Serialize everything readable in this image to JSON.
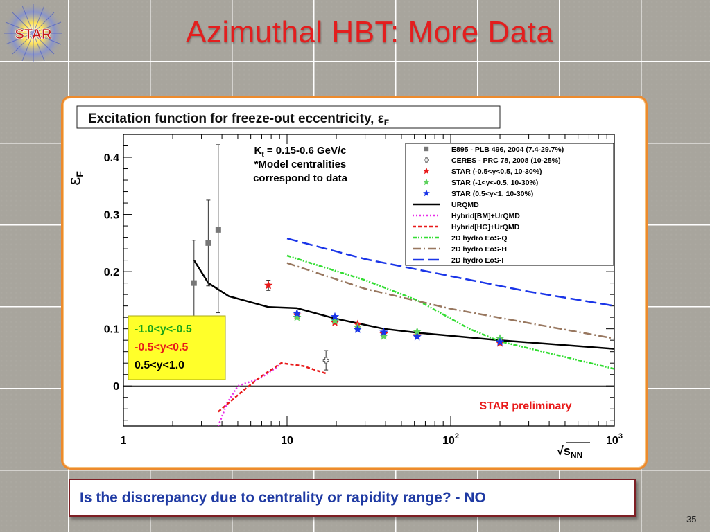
{
  "slide": {
    "title": "Azimuthal HBT: More Data",
    "logo_text": "STAR",
    "question": "Is the discrepancy due to centrality or rapidity range? - NO",
    "page_number": "35",
    "colors": {
      "title": "#e31e1e",
      "frame_border": "#ed8a2c",
      "question_text": "#1f3aa3",
      "question_border": "#7d1f24"
    }
  },
  "chart_data": {
    "type": "scatter",
    "title": "Excitation function for freeze-out eccentricity, ε",
    "title_subscript": "F",
    "ylabel": "ε",
    "ylabel_subscript": "F",
    "xlabel": "√s",
    "xlabel_subscript": "NN",
    "xscale": "log",
    "xlim": [
      1,
      1000
    ],
    "ylim": [
      -0.07,
      0.44
    ],
    "x_tick_labels": [
      {
        "value": 1,
        "label": "1"
      },
      {
        "value": 10,
        "label": "10"
      },
      {
        "value": 100,
        "label": "10",
        "sup": "2"
      },
      {
        "value": 1000,
        "label": "10",
        "sup": "3"
      }
    ],
    "y_tick_labels": [
      {
        "value": 0,
        "label": "0"
      },
      {
        "value": 0.1,
        "label": "0.1"
      },
      {
        "value": 0.2,
        "label": "0.2"
      },
      {
        "value": 0.3,
        "label": "0.3"
      },
      {
        "value": 0.4,
        "label": "0.4"
      }
    ],
    "annotation_lines": [
      {
        "text": "K",
        "sub": "t",
        "rest": " = 0.15-0.6 GeV/c"
      },
      {
        "text": "*Model centralities"
      },
      {
        "text": "correspond to data"
      }
    ],
    "preliminary_label": "STAR preliminary",
    "rapidity_legend": [
      {
        "text": "-1.0<y<-0.5",
        "color": "#18a318"
      },
      {
        "text": "-0.5<y<0.5",
        "color": "#e81a1a"
      },
      {
        "text": "0.5<y<1.0",
        "color": "#000000"
      }
    ],
    "legend": {
      "placement": "top-right",
      "entries": [
        {
          "label": "E895 - PLB 496, 2004 (7.4-29.7%)",
          "kind": "square",
          "color": "#777777"
        },
        {
          "label": "CERES - PRC 78, 2008 (10-25%)",
          "kind": "cross",
          "color": "#555555"
        },
        {
          "label": "STAR (-0.5<y<0.5, 10-30%)",
          "kind": "star",
          "color": "#e81a1a"
        },
        {
          "label": "STAR (-1<y<-0.5, 10-30%)",
          "kind": "star",
          "color": "#5fd35f"
        },
        {
          "label": "STAR (0.5<y<1, 10-30%)",
          "kind": "star",
          "color": "#1a35e8"
        },
        {
          "label": "URQMD",
          "kind": "line",
          "color": "#000000",
          "dash": "",
          "width": 2.5
        },
        {
          "label": "Hybrid[BM]+UrQMD",
          "kind": "line",
          "color": "#e82ae8",
          "dash": "2 3",
          "width": 2.5
        },
        {
          "label": "Hybrid[HG]+UrQMD",
          "kind": "line",
          "color": "#e81a1a",
          "dash": "5 3",
          "width": 2.5
        },
        {
          "label": "2D hydro EoS-Q",
          "kind": "line",
          "color": "#33dd33",
          "dash": "6 2 2 2 2 2",
          "width": 2.5
        },
        {
          "label": "2D hydro EoS-H",
          "kind": "line",
          "color": "#98775f",
          "dash": "12 4 2 4",
          "width": 2.5
        },
        {
          "label": "2D hydro EoS-I",
          "kind": "line",
          "color": "#1a35e8",
          "dash": "16 6",
          "width": 2.5
        }
      ]
    },
    "series": [
      {
        "name": "E895 - PLB 496, 2004 (7.4-29.7%)",
        "kind": "square",
        "color": "#777777",
        "points": [
          {
            "x": 2.7,
            "y": 0.18,
            "lo": 0.105,
            "hi": 0.255
          },
          {
            "x": 3.3,
            "y": 0.25,
            "lo": 0.175,
            "hi": 0.325
          },
          {
            "x": 3.8,
            "y": 0.273,
            "lo": 0.128,
            "hi": 0.422
          }
        ]
      },
      {
        "name": "CERES - PRC 78, 2008 (10-25%)",
        "kind": "cross",
        "color": "#555555",
        "points": [
          {
            "x": 17.3,
            "y": 0.045,
            "lo": 0.028,
            "hi": 0.062
          }
        ]
      },
      {
        "name": "STAR (-0.5<y<0.5, 10-30%)",
        "kind": "star",
        "color": "#e81a1a",
        "points": [
          {
            "x": 7.7,
            "y": 0.176,
            "lo": 0.167,
            "hi": 0.185
          },
          {
            "x": 11.5,
            "y": 0.124
          },
          {
            "x": 19.6,
            "y": 0.111
          },
          {
            "x": 27,
            "y": 0.108
          },
          {
            "x": 39,
            "y": 0.091
          },
          {
            "x": 62.4,
            "y": 0.088
          },
          {
            "x": 200,
            "y": 0.075
          }
        ]
      },
      {
        "name": "STAR (-1<y<-0.5, 10-30%)",
        "kind": "star",
        "color": "#5fd35f",
        "points": [
          {
            "x": 11.5,
            "y": 0.12
          },
          {
            "x": 19.6,
            "y": 0.114
          },
          {
            "x": 27,
            "y": 0.103
          },
          {
            "x": 39,
            "y": 0.087
          },
          {
            "x": 62.4,
            "y": 0.095
          },
          {
            "x": 200,
            "y": 0.083
          }
        ]
      },
      {
        "name": "STAR (0.5<y<1, 10-30%)",
        "kind": "star",
        "color": "#1a35e8",
        "points": [
          {
            "x": 11.5,
            "y": 0.127
          },
          {
            "x": 19.6,
            "y": 0.121
          },
          {
            "x": 27,
            "y": 0.099
          },
          {
            "x": 39,
            "y": 0.094
          },
          {
            "x": 62.4,
            "y": 0.086
          },
          {
            "x": 200,
            "y": 0.077
          }
        ]
      },
      {
        "name": "URQMD",
        "kind": "line",
        "color": "#000000",
        "dash": "",
        "width": 2.5,
        "points": [
          {
            "x": 2.7,
            "y": 0.22
          },
          {
            "x": 3.3,
            "y": 0.18
          },
          {
            "x": 4.4,
            "y": 0.157
          },
          {
            "x": 7.7,
            "y": 0.138
          },
          {
            "x": 11.5,
            "y": 0.136
          },
          {
            "x": 19.6,
            "y": 0.118
          },
          {
            "x": 39,
            "y": 0.1
          },
          {
            "x": 62.4,
            "y": 0.093
          },
          {
            "x": 200,
            "y": 0.08
          },
          {
            "x": 1000,
            "y": 0.065
          }
        ]
      },
      {
        "name": "Hybrid[BM]+UrQMD",
        "kind": "line",
        "color": "#e82ae8",
        "dash": "2 3",
        "width": 2.5,
        "points": [
          {
            "x": 3.8,
            "y": -0.07
          },
          {
            "x": 4.3,
            "y": -0.03
          },
          {
            "x": 5,
            "y": 0.0
          },
          {
            "x": 6.8,
            "y": 0.013
          },
          {
            "x": 9.2,
            "y": 0.038
          }
        ]
      },
      {
        "name": "Hybrid[HG]+UrQMD",
        "kind": "line",
        "color": "#e81a1a",
        "dash": "5 3",
        "width": 2.5,
        "points": [
          {
            "x": 3.8,
            "y": -0.045
          },
          {
            "x": 5.2,
            "y": -0.012
          },
          {
            "x": 6.8,
            "y": 0.015
          },
          {
            "x": 9.2,
            "y": 0.04
          },
          {
            "x": 12.5,
            "y": 0.035
          },
          {
            "x": 17.3,
            "y": 0.022
          }
        ]
      },
      {
        "name": "2D hydro EoS-Q",
        "kind": "line",
        "color": "#33dd33",
        "dash": "6 2 2 2 2 2",
        "width": 2.5,
        "points": [
          {
            "x": 10,
            "y": 0.228
          },
          {
            "x": 30,
            "y": 0.185
          },
          {
            "x": 62.4,
            "y": 0.15
          },
          {
            "x": 130,
            "y": 0.1
          },
          {
            "x": 200,
            "y": 0.078
          },
          {
            "x": 1000,
            "y": 0.03
          }
        ]
      },
      {
        "name": "2D hydro EoS-H",
        "kind": "line",
        "color": "#98775f",
        "dash": "12 4 2 4",
        "width": 2.5,
        "points": [
          {
            "x": 10,
            "y": 0.215
          },
          {
            "x": 30,
            "y": 0.17
          },
          {
            "x": 100,
            "y": 0.135
          },
          {
            "x": 300,
            "y": 0.11
          },
          {
            "x": 1000,
            "y": 0.083
          }
        ]
      },
      {
        "name": "2D hydro EoS-I",
        "kind": "line",
        "color": "#1a35e8",
        "dash": "16 6",
        "width": 2.5,
        "points": [
          {
            "x": 10,
            "y": 0.258
          },
          {
            "x": 30,
            "y": 0.222
          },
          {
            "x": 100,
            "y": 0.192
          },
          {
            "x": 300,
            "y": 0.165
          },
          {
            "x": 1000,
            "y": 0.14
          }
        ]
      }
    ]
  }
}
